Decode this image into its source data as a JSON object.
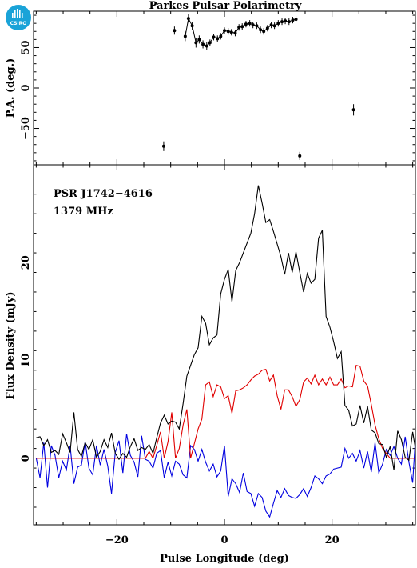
{
  "title": "Parkes Pulsar Polarimetry",
  "logo_text": "CSIRO",
  "colors": {
    "total": "#000000",
    "linear": "#e00000",
    "circular": "#0000e0",
    "logo": "#1aa3d8"
  },
  "chart_data": [
    {
      "type": "scatter",
      "panel": "position-angle",
      "ylabel": "P.A. (deg.)",
      "xlim": [
        -35.5,
        35.5
      ],
      "ylim": [
        -95,
        95
      ],
      "yticks": [
        -50,
        0,
        50
      ],
      "yticklabels": [
        "−50",
        "0",
        "50"
      ],
      "x": [
        -11.3,
        -9.3,
        -7.3,
        -6.7,
        -6.0,
        -5.3,
        -4.7,
        -4.0,
        -3.3,
        -2.7,
        -2.0,
        -1.3,
        -0.7,
        0.0,
        0.7,
        1.3,
        2.0,
        2.7,
        3.3,
        4.0,
        4.7,
        5.3,
        6.0,
        6.7,
        7.3,
        8.0,
        8.7,
        9.3,
        10.0,
        10.7,
        11.3,
        12.0,
        12.7,
        13.3,
        14.0,
        24.0
      ],
      "y": [
        -72,
        71,
        64,
        86,
        77,
        56,
        60,
        54,
        52,
        56,
        63,
        61,
        64,
        71,
        70,
        69,
        68,
        75,
        76,
        79,
        80,
        78,
        77,
        72,
        70,
        74,
        78,
        77,
        80,
        82,
        83,
        82,
        84,
        85,
        -84,
        -27
      ],
      "yerr": [
        6,
        5,
        6,
        5,
        5,
        6,
        5,
        5,
        5,
        4,
        4,
        4,
        4,
        4,
        4,
        4,
        4,
        4,
        4,
        4,
        4,
        4,
        4,
        4,
        4,
        4,
        4,
        4,
        4,
        4,
        4,
        4,
        4,
        4,
        5,
        7
      ]
    },
    {
      "type": "line",
      "panel": "flux-profile",
      "xlabel": "Pulse Longitude (deg)",
      "ylabel": "Flux Density (mJy)",
      "xlim": [
        -35.5,
        35.5
      ],
      "ylim": [
        -6.8,
        30
      ],
      "xticks": [
        -20,
        0,
        20
      ],
      "xticklabels": [
        "−20",
        "0",
        "20"
      ],
      "yticks": [
        0,
        10,
        20
      ],
      "yticklabels": [
        "0",
        "10",
        "20"
      ],
      "annotations": [
        "PSR J1742−4616",
        "1379 MHz"
      ],
      "x_start": -35.0,
      "x_step": 0.7,
      "series": [
        {
          "values": [
            2.1,
            2.2,
            1.3,
            1.9,
            0.6,
            0.8,
            0.4,
            2.5,
            1.6,
            0.6,
            4.7,
            0.9,
            0.2,
            1.6,
            0.9,
            1.9,
            0.1,
            0.7,
            1.9,
            1.1,
            2.6,
            0.5,
            -0.1,
            0.5,
            0.1,
            1.2,
            2.0,
            0.8,
            1.1,
            0.9,
            1.4,
            0.5,
            2.1,
            3.6,
            4.4,
            3.5,
            3.8,
            3.7,
            3.0,
            5.6,
            8.4,
            9.5,
            10.6,
            11.3,
            14.5,
            13.8,
            11.6,
            12.3,
            12.6,
            16.8,
            18.3,
            19.3,
            16.0,
            19.2,
            20.0,
            21.0,
            22.0,
            23.0,
            25.0,
            27.9,
            26.1,
            24.1,
            24.4,
            23.2,
            21.9,
            20.6,
            18.8,
            21.0,
            19.0,
            21.1,
            19.0,
            17.0,
            18.9,
            17.9,
            18.3,
            22.5,
            23.3,
            14.5,
            13.4,
            11.9,
            10.2,
            10.9,
            5.4,
            4.9,
            3.3,
            3.5,
            5.4,
            3.6,
            5.3,
            2.9,
            2.6,
            1.5,
            1.4,
            0.1,
            1.2,
            -1.2,
            2.8,
            1.9,
            0.1,
            -0.2,
            2.7,
            1.0,
            0.1,
            0.8,
            3.2,
            0.4,
            1.4,
            2.2,
            -0.5,
            0.8,
            0.9,
            0.3,
            0.1,
            1.9,
            -4.4,
            2.4
          ]
        },
        {
          "values": [
            0,
            0,
            0,
            0,
            0,
            0,
            0,
            0,
            0,
            0,
            0,
            0,
            0,
            0,
            0,
            0,
            0,
            0,
            0,
            0,
            0,
            0,
            0,
            0,
            0,
            0,
            0,
            0,
            0,
            0,
            0.7,
            0,
            1.3,
            2.7,
            0,
            1.7,
            4.7,
            0,
            1.0,
            3.4,
            5.0,
            0,
            1.5,
            3.0,
            4.0,
            7.5,
            7.8,
            6.3,
            7.5,
            7.3,
            6.1,
            6.4,
            4.6,
            6.9,
            7.0,
            7.2,
            7.5,
            8.0,
            8.4,
            8.6,
            9.0,
            9.1,
            7.9,
            8.5,
            6.4,
            5.0,
            7.0,
            7.0,
            6.3,
            5.3,
            6.0,
            7.8,
            8.2,
            7.6,
            8.5,
            7.5,
            8.1,
            7.5,
            8.3,
            7.5,
            7.5,
            8.1,
            7.2,
            7.4,
            7.3,
            9.5,
            9.4,
            7.9,
            7.4,
            5.5,
            3.4,
            2.0,
            1.0,
            0.5,
            0,
            0,
            0,
            0,
            0,
            0,
            0,
            0,
            0,
            0,
            0,
            0,
            0,
            0,
            0,
            0,
            0,
            0,
            0,
            0,
            0,
            0
          ]
        },
        {
          "values": [
            0,
            -2,
            1.6,
            -3.0,
            1.3,
            0.3,
            -2.0,
            -0.3,
            -1.2,
            1.3,
            -2.6,
            -0.9,
            -0.7,
            1.7,
            -1.0,
            -1.7,
            1.3,
            -0.7,
            0.9,
            -0.8,
            -3.6,
            0.6,
            1.8,
            -1.5,
            2.5,
            0.3,
            -0.4,
            -1.9,
            2.3,
            -0.1,
            -0.3,
            -1.0,
            0.5,
            0.8,
            -2.0,
            -0.4,
            -1.8,
            -0.3,
            -0.6,
            -1.7,
            -2.0,
            1.3,
            0.9,
            -0.3,
            0.9,
            -0.4,
            -1.3,
            -0.6,
            -1.9,
            -1.3,
            1.3,
            -3.9,
            -2.1,
            -2.6,
            -3.5,
            -1.5,
            -3.4,
            -3.6,
            -4.9,
            -3.6,
            -4.0,
            -5.4,
            -6.0,
            -4.6,
            -3.3,
            -4.0,
            -3.1,
            -3.8,
            -4.0,
            -4.1,
            -3.7,
            -3.1,
            -3.9,
            -3.0,
            -1.8,
            -2.1,
            -2.6,
            -1.8,
            -1.6,
            -1.1,
            -1.0,
            -0.9,
            1.0,
            0,
            0.5,
            -0.3,
            0.8,
            -1.0,
            0.7,
            -1.4,
            1.6,
            -1.5,
            -0.6,
            0.9,
            0.3,
            1.2,
            0.0,
            -0.6,
            2.2,
            -0.4,
            -2.5,
            2.0,
            -0.7,
            -1.1,
            0.6,
            1.6,
            -1.5,
            0.4,
            0.5,
            -0.5,
            -1.0,
            0.5,
            1.0,
            -1.5,
            -0.6,
            -1.5
          ]
        }
      ]
    }
  ]
}
